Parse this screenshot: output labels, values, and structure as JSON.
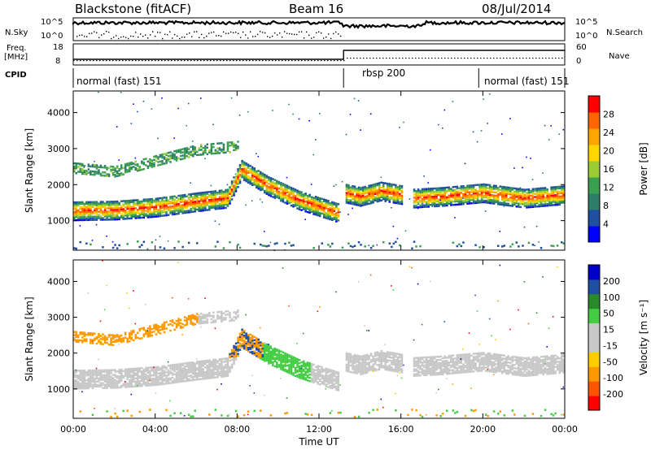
{
  "header": {
    "station": "Blackstone (fitACF)",
    "beam": "Beam 16",
    "date": "08/Jul/2014"
  },
  "side_labels": {
    "nsky": "N.Sky",
    "freq": "Freq.",
    "freq_unit": "[MHz]",
    "cpid": "CPID",
    "nsearch": "N.Search",
    "nave": "Nave",
    "nsky_ticks": [
      "10^5",
      "10^0"
    ],
    "nsearch_ticks": [
      "10^5",
      "10^0"
    ],
    "freq_ticks": [
      "18",
      "8"
    ],
    "nave_ticks": [
      "60",
      "0"
    ]
  },
  "cpid_segments": [
    {
      "label": "normal (fast) 151",
      "start_h": 0,
      "end_h": 13.2
    },
    {
      "label": "rbsp 200",
      "start_h": 13.2,
      "end_h": 19.8
    },
    {
      "label": "normal (fast) 151",
      "start_h": 19.8,
      "end_h": 24
    }
  ],
  "colors": {
    "power": [
      "#0000ff",
      "#1f4fa0",
      "#2e7d6a",
      "#3aa050",
      "#9acd32",
      "#ffd700",
      "#ffa500",
      "#ff6600",
      "#ff0000"
    ],
    "velocity": [
      "#ff0000",
      "#ff5500",
      "#ff9900",
      "#ffcc00",
      "#c8c8c8",
      "#c8c8c8",
      "#44cc44",
      "#2a8a2a",
      "#1f4fa0",
      "#0000cc"
    ]
  },
  "chart_data": [
    {
      "type": "heatmap",
      "panel": "power",
      "xlabel": "",
      "ylabel": "Slant Range [km]",
      "xlim": [
        0,
        24
      ],
      "ylim": [
        180,
        4600
      ],
      "yticks": [
        "1000",
        "2000",
        "3000",
        "4000"
      ],
      "colorbar": {
        "label": "Power [dB]",
        "ticks": [
          "28",
          "24",
          "20",
          "16",
          "12",
          "8",
          "4"
        ],
        "range": [
          0,
          30
        ]
      },
      "bands": [
        {
          "t": [
            0,
            2,
            4,
            6,
            7.5,
            8.2,
            9.5,
            11,
            12.9
          ],
          "r": [
            1300,
            1320,
            1400,
            1550,
            1650,
            2450,
            2000,
            1600,
            1250
          ]
        },
        {
          "t": [
            13.2,
            14,
            15,
            16
          ],
          "r": [
            1800,
            1700,
            1850,
            1750
          ]
        },
        {
          "t": [
            16.5,
            18,
            20,
            22,
            24
          ],
          "r": [
            1650,
            1700,
            1800,
            1650,
            1750
          ]
        },
        {
          "t": [
            0,
            2,
            4,
            6,
            8
          ],
          "r": [
            2500,
            2400,
            2700,
            3000,
            3100
          ]
        }
      ]
    },
    {
      "type": "heatmap",
      "panel": "velocity",
      "xlabel": "Time UT",
      "ylabel": "Slant Range [km]",
      "xlim": [
        0,
        24
      ],
      "ylim": [
        180,
        4600
      ],
      "xticks": [
        "00:00",
        "04:00",
        "08:00",
        "12:00",
        "16:00",
        "20:00",
        "00:00"
      ],
      "yticks": [
        "1000",
        "2000",
        "3000",
        "4000"
      ],
      "colorbar": {
        "label": "Velocity [m s⁻¹]",
        "ticks": [
          "200",
          "100",
          "50",
          "15",
          "-15",
          "-50",
          "-100",
          "-200"
        ],
        "range": [
          -250,
          250
        ]
      }
    }
  ],
  "scan_lines": {
    "nsky_level": 0.7,
    "freq_switch_h": 13.2,
    "freq_low": 10.5,
    "freq_high": 16.5
  }
}
